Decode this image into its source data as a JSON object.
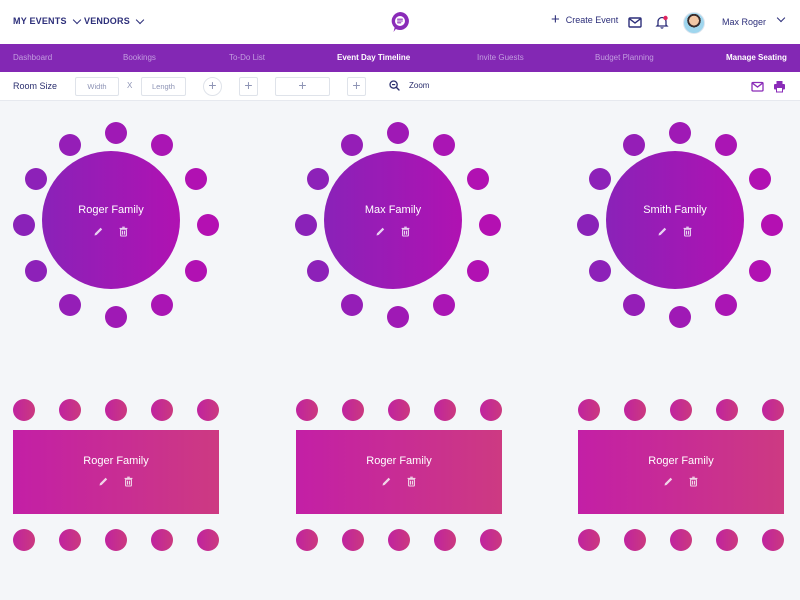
{
  "header": {
    "menus": [
      {
        "label": "MY EVENTS"
      },
      {
        "label": "VENDORS"
      }
    ],
    "logo_icon": "chat-bubble-logo-icon",
    "create_event_label": "Create Event",
    "icons": [
      "mail-icon",
      "bell-icon"
    ],
    "user": {
      "name": "Max Roger",
      "avatar": "user-avatar"
    }
  },
  "nav": {
    "items": [
      {
        "label": "Dashboard",
        "active": false
      },
      {
        "label": "Bookings",
        "active": false
      },
      {
        "label": "To-Do List",
        "active": false
      },
      {
        "label": "Event Day Timeline",
        "active": true
      },
      {
        "label": "Invite Guests",
        "active": false
      },
      {
        "label": "Budget Planning",
        "active": false
      },
      {
        "label": "Manage Seating",
        "active": true
      }
    ]
  },
  "toolbar": {
    "room_size_label": "Room Size",
    "width_placeholder": "Width",
    "x_label": "X",
    "length_placeholder": "Length",
    "zoom_label": "Zoom",
    "add_symbol": "+"
  },
  "tables": {
    "round": [
      {
        "name": "Roger Family",
        "seats": 12
      },
      {
        "name": "Max Family",
        "seats": 12
      },
      {
        "name": "Smith Family",
        "seats": 12
      }
    ],
    "rectangular": [
      {
        "name": "Roger Family",
        "seats": 10
      },
      {
        "name": "Roger Family",
        "seats": 10
      },
      {
        "name": "Roger Family",
        "seats": 10
      }
    ]
  },
  "colors": {
    "nav_bg": "#8328b4",
    "round_table_start": "#8a22b8",
    "round_table_end": "#b012b2",
    "rect_table_start": "#c31fa6",
    "rect_table_end": "#cd3a82",
    "accent_dark": "#2d2f7a",
    "notification_dot": "#e0245e"
  }
}
